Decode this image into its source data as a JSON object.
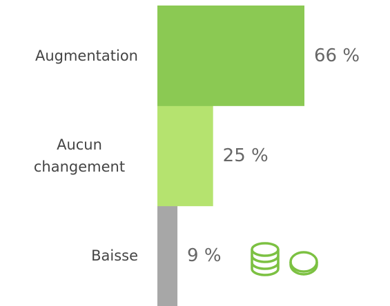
{
  "chart_data": {
    "type": "barh",
    "categories": [
      "Augmentation",
      "Aucun changement",
      "Baisse"
    ],
    "values": [
      66,
      25,
      9
    ],
    "value_labels": [
      "66 %",
      "25 %",
      "9 %"
    ],
    "colors": [
      "#8bc953",
      "#b5e36f",
      "#a7a7a7"
    ],
    "xlim": [
      0,
      66
    ]
  }
}
